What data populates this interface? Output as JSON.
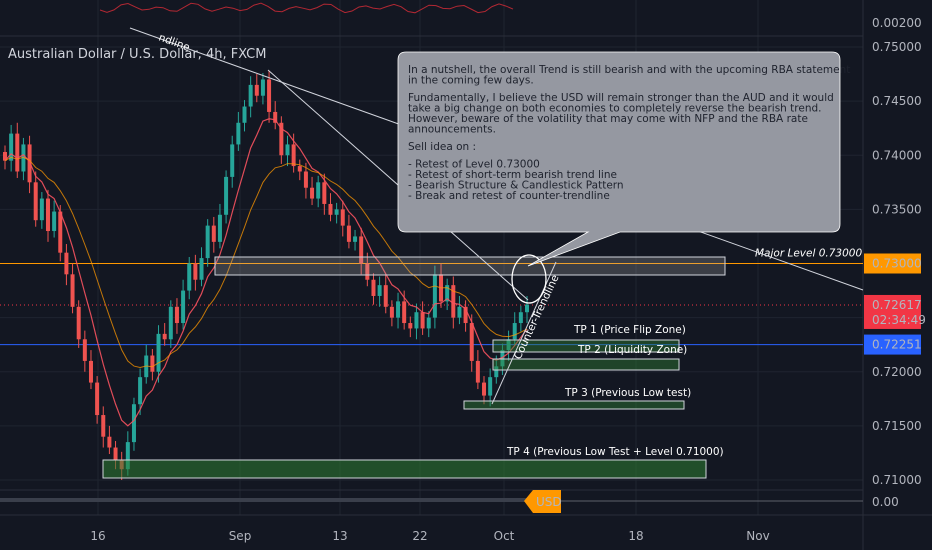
{
  "chart_data": {
    "type": "candlestick",
    "title": "Australian Dollar / U.S. Dollar, 4h, FXCM",
    "x_axis": {
      "ticks": [
        {
          "label": "16",
          "index": 0
        },
        {
          "label": "Sep",
          "index": 1
        },
        {
          "label": "13",
          "index": 2
        },
        {
          "label": "22",
          "index": 3
        },
        {
          "label": "Oct",
          "index": 4
        },
        {
          "label": "18",
          "index": 5
        },
        {
          "label": "Nov",
          "index": 6
        }
      ]
    },
    "y_axis": {
      "range": [
        0.708,
        0.7525
      ],
      "ticks": [
        "0.75000",
        "0.74500",
        "0.74000",
        "0.73500",
        "0.73000",
        "0.72500",
        "0.72000",
        "0.71500",
        "0.71000"
      ]
    },
    "top_indicator": {
      "last_label": "0.00200"
    },
    "bottom_indicator": {
      "tick_label": "0.00",
      "badge": "USD"
    },
    "price_badges": [
      {
        "label": "0.73000",
        "value": 0.73,
        "color": "#ff9800"
      },
      {
        "label": "0.72617",
        "sublabel": "02:34:49",
        "value": 0.72617,
        "color": "#f23645"
      },
      {
        "label": "0.72251",
        "value": 0.72251,
        "color": "#2962ff"
      }
    ],
    "levels": [
      {
        "name": "Major Level 0.73000",
        "value": 0.73,
        "color": "#ff9800"
      },
      {
        "name": "current",
        "value": 0.72617,
        "color": "#f23645"
      },
      {
        "name": "blue",
        "value": 0.72251,
        "color": "#2962ff"
      }
    ],
    "trendlines": [
      {
        "label": "Counter-Trendline"
      },
      {
        "label": "ndline"
      }
    ],
    "zones": [
      {
        "label": "TP 1 (Price Flip Zone)"
      },
      {
        "label": "TP 2 (Liquidity Zone)"
      },
      {
        "label": "TP 3 (Previous Low test)"
      },
      {
        "label": "TP 4 (Previous Low Test + Level 0.71000)"
      }
    ],
    "close_series": [
      0.7395,
      0.742,
      0.7385,
      0.741,
      0.7375,
      0.734,
      0.736,
      0.733,
      0.7348,
      0.731,
      0.729,
      0.726,
      0.723,
      0.721,
      0.719,
      0.716,
      0.714,
      0.713,
      0.7118,
      0.711,
      0.7135,
      0.717,
      0.7195,
      0.7215,
      0.72,
      0.7235,
      0.723,
      0.726,
      0.7245,
      0.7275,
      0.73,
      0.7285,
      0.7305,
      0.7335,
      0.732,
      0.7345,
      0.738,
      0.741,
      0.743,
      0.7445,
      0.7465,
      0.7455,
      0.747,
      0.744,
      0.743,
      0.74,
      0.741,
      0.739,
      0.7385,
      0.737,
      0.736,
      0.7375,
      0.7355,
      0.7345,
      0.735,
      0.7335,
      0.732,
      0.7325,
      0.73,
      0.7285,
      0.727,
      0.728,
      0.726,
      0.725,
      0.7265,
      0.7245,
      0.724,
      0.7255,
      0.724,
      0.725,
      0.729,
      0.7265,
      0.728,
      0.725,
      0.726,
      0.7245,
      0.721,
      0.719,
      0.7178,
      0.7195,
      0.7205,
      0.722,
      0.723,
      0.7245,
      0.7255,
      0.7262
    ]
  },
  "note": {
    "paragraphs": [
      [
        "In a nutshell, the overall Trend is still bearish and with the upcoming RBA statement",
        "in the coming few days."
      ],
      [
        "Fundamentally, I believe the USD will remain stronger than the AUD and it would",
        "take a big change on both economies to completely reverse the bearish trend.",
        "However, beware of the volatility that may come with NFP and the RBA rate",
        "announcements."
      ],
      [
        "Sell idea on :"
      ],
      [
        "- Retest of Level 0.73000",
        "- Retest of short-term bearish trend line",
        "- Bearish Structure & Candlestick Pattern",
        "- Break and retest of counter-trendline"
      ]
    ]
  }
}
